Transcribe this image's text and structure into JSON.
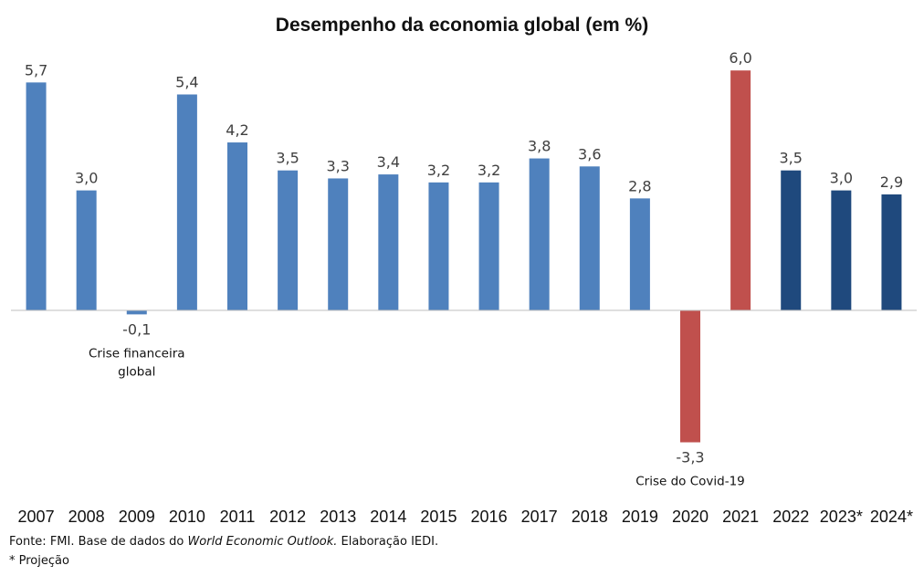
{
  "chart_data": {
    "type": "bar",
    "title": "Desempenho da economia global (em %)",
    "categories": [
      "2007",
      "2008",
      "2009",
      "2010",
      "2011",
      "2012",
      "2013",
      "2014",
      "2015",
      "2016",
      "2017",
      "2018",
      "2019",
      "2020",
      "2021",
      "2022",
      "2023*",
      "2024*"
    ],
    "values": [
      5.7,
      3.0,
      -0.1,
      5.4,
      4.2,
      3.5,
      3.3,
      3.4,
      3.2,
      3.2,
      3.8,
      3.6,
      2.8,
      -3.3,
      6.0,
      3.5,
      3.0,
      2.9
    ],
    "value_labels": [
      "5,7",
      "3,0",
      "-0,1",
      "5,4",
      "4,2",
      "3,5",
      "3,3",
      "3,4",
      "3,2",
      "3,2",
      "3,8",
      "3,6",
      "2,8",
      "-3,3",
      "6,0",
      "3,5",
      "3,0",
      "2,9"
    ],
    "bar_colors": [
      "#4f81bd",
      "#4f81bd",
      "#4f81bd",
      "#4f81bd",
      "#4f81bd",
      "#4f81bd",
      "#4f81bd",
      "#4f81bd",
      "#4f81bd",
      "#4f81bd",
      "#4f81bd",
      "#4f81bd",
      "#4f81bd",
      "#c0504d",
      "#c0504d",
      "#1f497d",
      "#1f497d",
      "#1f497d"
    ],
    "ylim": [
      -3.3,
      6.0
    ],
    "grid": false,
    "legend": "none",
    "annotations": [
      {
        "category": "2009",
        "lines": [
          "Crise financeira",
          "global"
        ]
      },
      {
        "category": "2020",
        "lines": [
          "Crise do Covid-19"
        ]
      }
    ],
    "colors": {
      "historical": "#4f81bd",
      "crisis_rebound": "#c0504d",
      "projection": "#1f497d",
      "axis": "#bfbfbf"
    }
  },
  "footer": {
    "source_prefix": "Fonte: FMI. Base de dados do ",
    "source_italic": "World Economic Outlook.",
    "source_suffix": " Elaboração IEDI.",
    "note": "* Projeção"
  }
}
